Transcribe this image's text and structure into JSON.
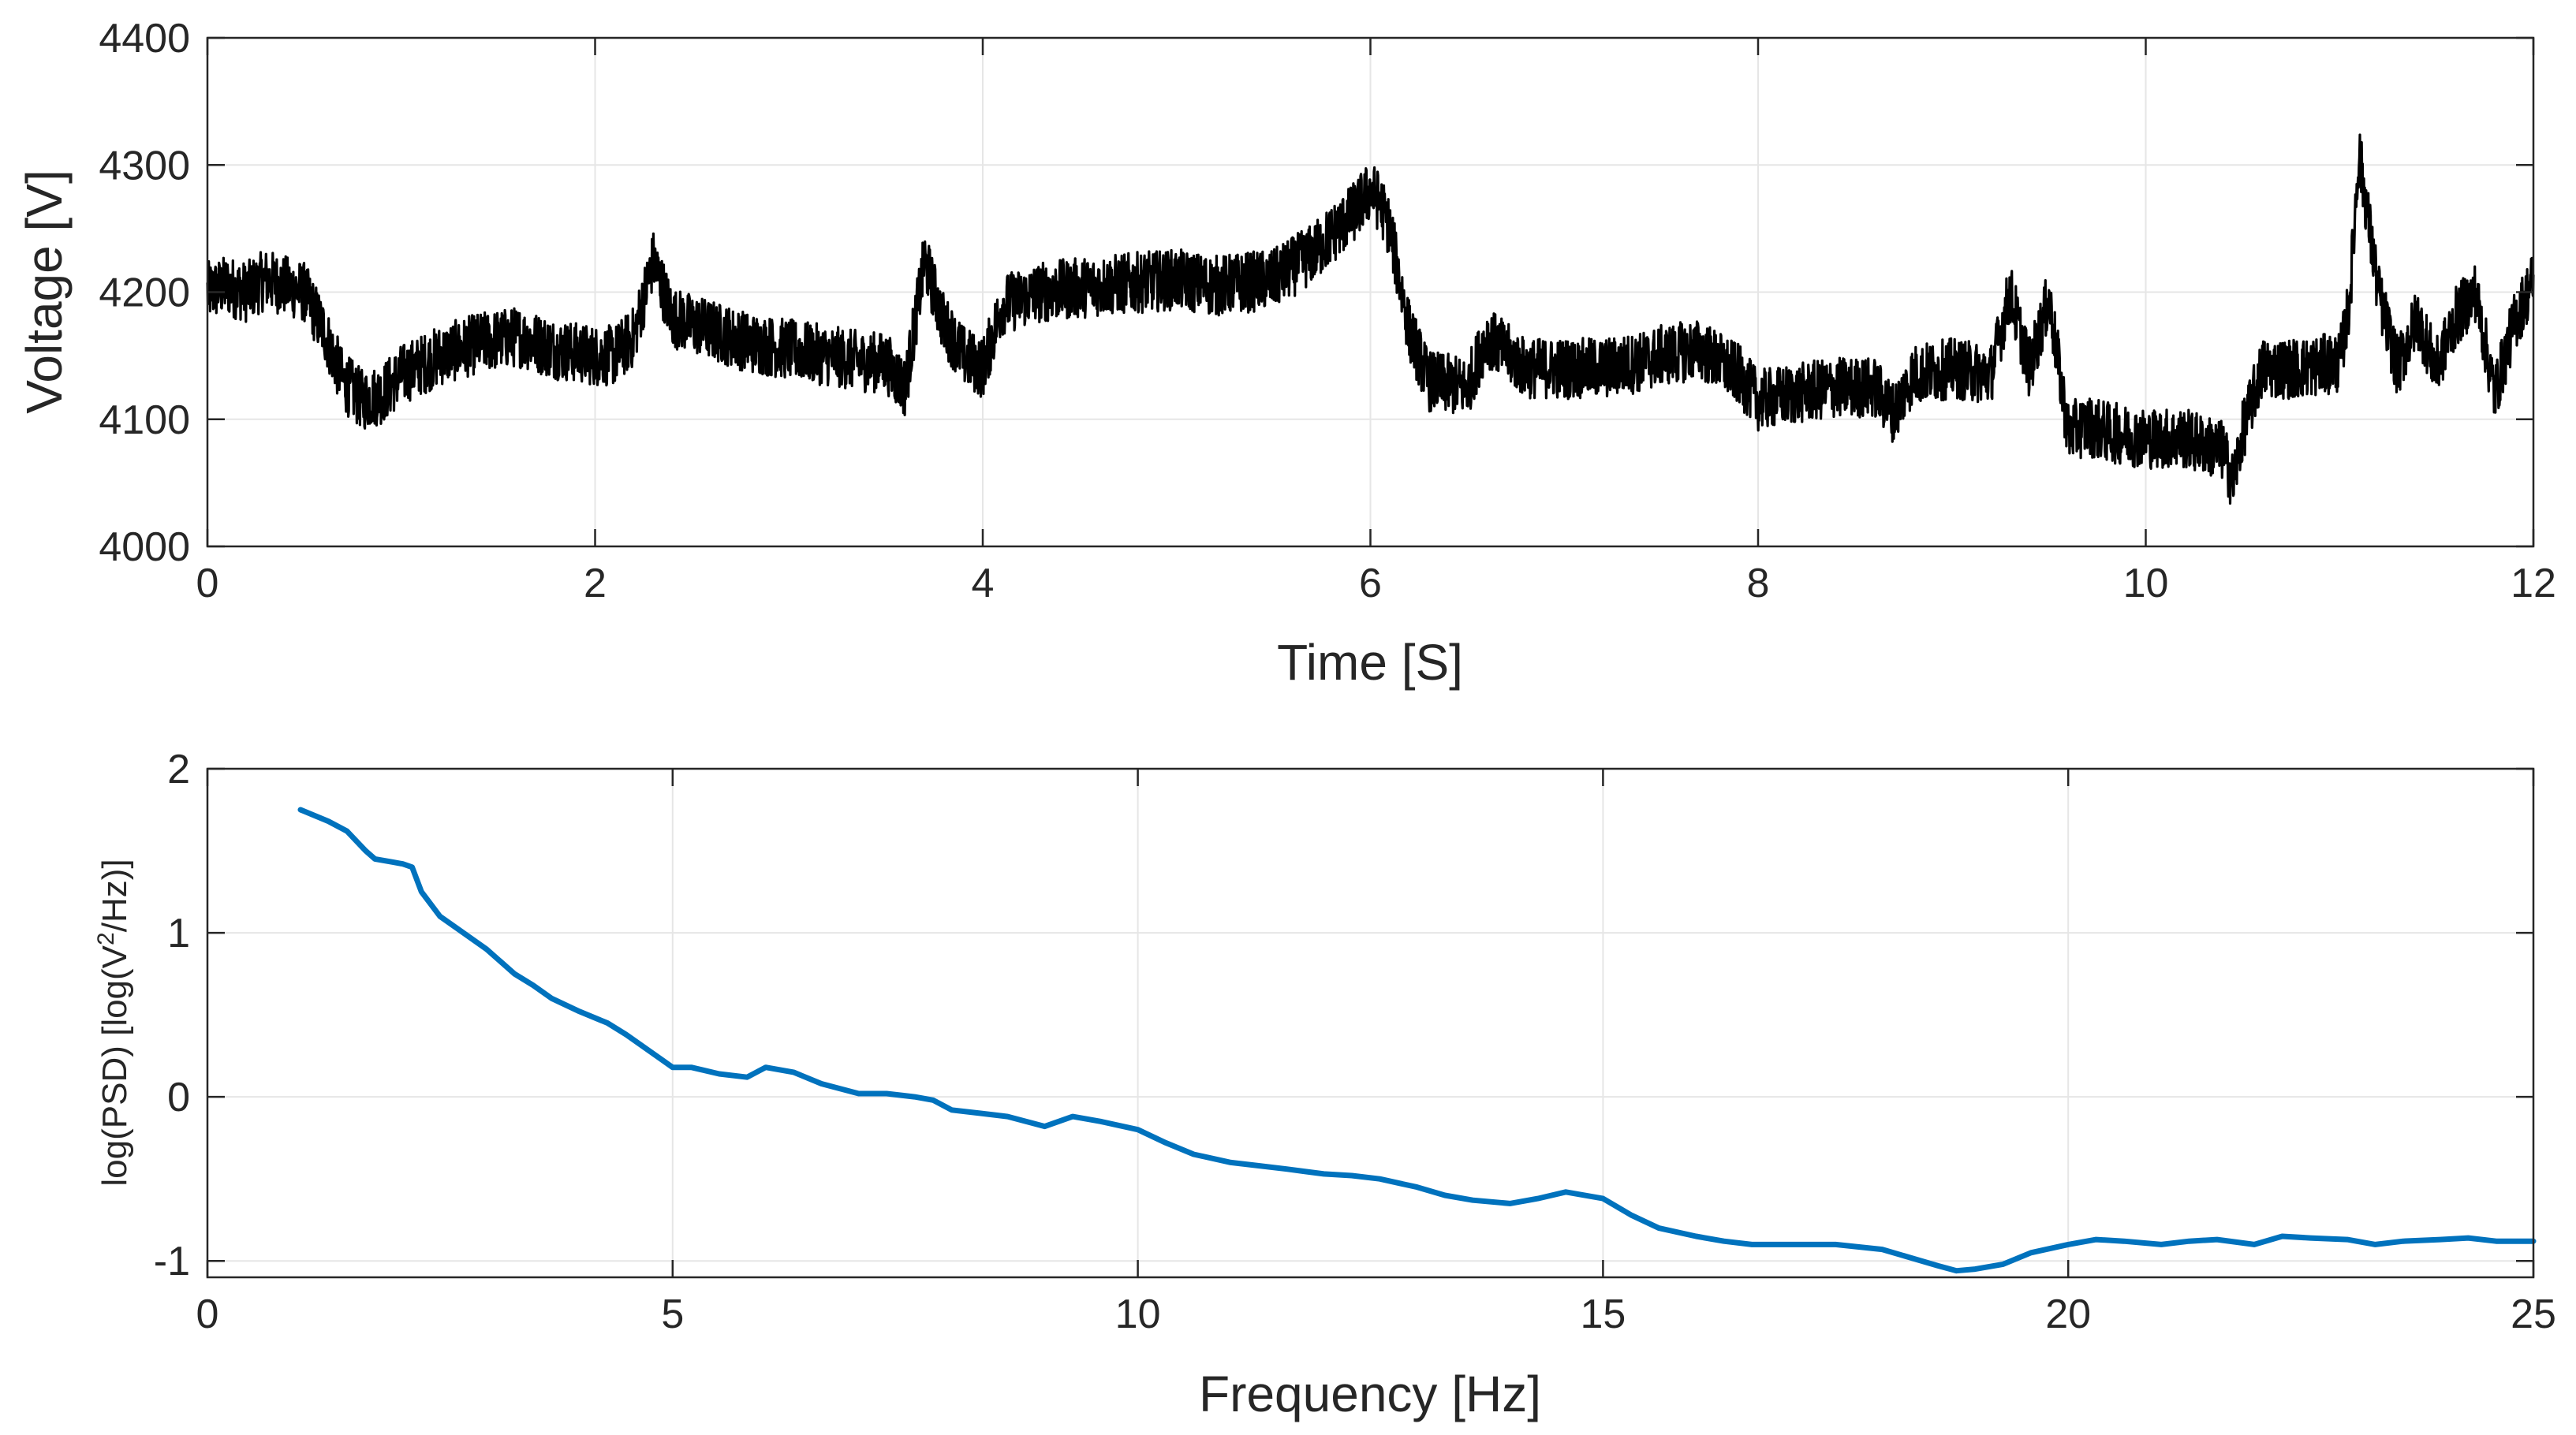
{
  "chart_data": [
    {
      "type": "line",
      "title": "",
      "xlabel": "Time [S]",
      "ylabel": "Voltage [V]",
      "xlim": [
        0,
        12
      ],
      "ylim": [
        4000,
        4400
      ],
      "xticks": [
        0,
        2,
        4,
        6,
        8,
        10,
        12
      ],
      "xticklabels": [
        "0",
        "2",
        "4",
        "6",
        "8",
        "10",
        "12"
      ],
      "yticks": [
        4000,
        4100,
        4200,
        4300,
        4400
      ],
      "yticklabels": [
        "4000",
        "4100",
        "4200",
        "4300",
        "4400"
      ],
      "grid": true,
      "series": [
        {
          "name": "Voltage",
          "color": "#000000",
          "x": [
            0,
            0.1,
            0.2,
            0.3,
            0.4,
            0.5,
            0.6,
            0.7,
            0.8,
            0.9,
            1.0,
            1.2,
            1.4,
            1.6,
            1.8,
            2.0,
            2.1,
            2.2,
            2.3,
            2.4,
            2.6,
            2.8,
            3.0,
            3.2,
            3.4,
            3.5,
            3.6,
            3.7,
            3.8,
            3.9,
            4.0,
            4.1,
            4.3,
            4.6,
            5.0,
            5.2,
            5.5,
            5.7,
            5.9,
            6.0,
            6.05,
            6.1,
            6.2,
            6.3,
            6.5,
            6.6,
            6.8,
            7.0,
            7.2,
            7.4,
            7.5,
            7.7,
            7.8,
            7.9,
            8.0,
            8.2,
            8.4,
            8.6,
            8.7,
            8.8,
            9.0,
            9.2,
            9.3,
            9.4,
            9.5,
            9.6,
            9.7,
            9.8,
            10.0,
            10.2,
            10.3,
            10.4,
            10.45,
            10.5,
            10.6,
            10.8,
            11.0,
            11.05,
            11.1,
            11.2,
            11.3,
            11.4,
            11.5,
            11.6,
            11.7,
            11.8,
            11.9,
            12.0
          ],
          "y": [
            4200,
            4205,
            4200,
            4210,
            4205,
            4200,
            4170,
            4130,
            4115,
            4120,
            4135,
            4150,
            4160,
            4165,
            4155,
            4150,
            4150,
            4165,
            4225,
            4180,
            4170,
            4160,
            4155,
            4150,
            4145,
            4145,
            4125,
            4225,
            4175,
            4150,
            4140,
            4190,
            4200,
            4205,
            4210,
            4205,
            4210,
            4230,
            4260,
            4280,
            4270,
            4250,
            4170,
            4130,
            4125,
            4165,
            4140,
            4140,
            4140,
            4145,
            4150,
            4155,
            4145,
            4135,
            4115,
            4120,
            4125,
            4125,
            4105,
            4135,
            4140,
            4135,
            4200,
            4140,
            4195,
            4090,
            4095,
            4090,
            4085,
            4085,
            4080,
            4075,
            4050,
            4090,
            4140,
            4140,
            4145,
            4190,
            4310,
            4200,
            4140,
            4180,
            4140,
            4180,
            4200,
            4120,
            4175,
            4210
          ]
        }
      ]
    },
    {
      "type": "line",
      "title": "",
      "xlabel": "Frequency [Hz]",
      "ylabel": "log(PSD) [log(V",
      "ylabel_sup": "2",
      "ylabel_end": "/Hz)]",
      "xlim": [
        0,
        25
      ],
      "ylim": [
        -1.1,
        2
      ],
      "xticks": [
        0,
        5,
        10,
        15,
        20,
        25
      ],
      "xticklabels": [
        "0",
        "5",
        "10",
        "15",
        "20",
        "25"
      ],
      "yticks": [
        -1,
        0,
        1,
        2
      ],
      "yticklabels": [
        "-1",
        "0",
        "1",
        "2"
      ],
      "grid": true,
      "series": [
        {
          "name": "log(PSD)",
          "color": "#0072BD",
          "x": [
            1.0,
            1.3,
            1.5,
            1.7,
            1.8,
            2.0,
            2.1,
            2.2,
            2.3,
            2.5,
            2.7,
            3.0,
            3.3,
            3.5,
            3.7,
            4.0,
            4.3,
            4.5,
            4.7,
            4.9,
            5.0,
            5.2,
            5.5,
            5.8,
            6.0,
            6.3,
            6.6,
            6.8,
            7.0,
            7.3,
            7.6,
            7.8,
            8.0,
            8.3,
            8.6,
            9.0,
            9.3,
            9.6,
            10.0,
            10.3,
            10.6,
            11.0,
            11.3,
            11.6,
            12.0,
            12.3,
            12.6,
            13.0,
            13.3,
            13.6,
            14.0,
            14.3,
            14.6,
            15.0,
            15.3,
            15.6,
            16.0,
            16.3,
            16.6,
            17.0,
            17.5,
            18.0,
            18.3,
            18.6,
            18.8,
            19.0,
            19.3,
            19.6,
            20.0,
            20.3,
            20.6,
            21.0,
            21.3,
            21.6,
            22.0,
            22.3,
            22.6,
            23.0,
            23.3,
            23.6,
            24.0,
            24.3,
            24.6,
            25.0
          ],
          "y": [
            1.75,
            1.68,
            1.62,
            1.5,
            1.45,
            1.43,
            1.42,
            1.4,
            1.25,
            1.1,
            1.02,
            0.9,
            0.75,
            0.68,
            0.6,
            0.52,
            0.45,
            0.38,
            0.3,
            0.22,
            0.18,
            0.18,
            0.14,
            0.12,
            0.18,
            0.15,
            0.08,
            0.05,
            0.02,
            0.02,
            0.0,
            -0.02,
            -0.08,
            -0.1,
            -0.12,
            -0.18,
            -0.12,
            -0.15,
            -0.2,
            -0.28,
            -0.35,
            -0.4,
            -0.42,
            -0.44,
            -0.47,
            -0.48,
            -0.5,
            -0.55,
            -0.6,
            -0.63,
            -0.65,
            -0.62,
            -0.58,
            -0.62,
            -0.72,
            -0.8,
            -0.85,
            -0.88,
            -0.9,
            -0.9,
            -0.9,
            -0.93,
            -0.98,
            -1.03,
            -1.06,
            -1.05,
            -1.02,
            -0.95,
            -0.9,
            -0.87,
            -0.88,
            -0.9,
            -0.88,
            -0.87,
            -0.9,
            -0.85,
            -0.86,
            -0.87,
            -0.9,
            -0.88,
            -0.87,
            -0.86,
            -0.88,
            -0.88
          ]
        }
      ]
    }
  ]
}
